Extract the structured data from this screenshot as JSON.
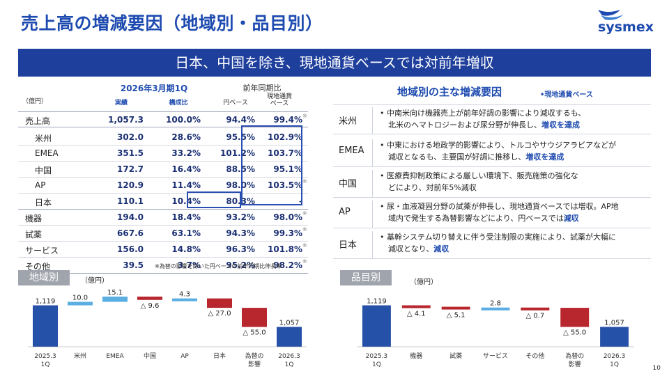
{
  "title": "売上高の増減要因（地域別・品目別）",
  "brand": "sysmex",
  "banner": "日本、中国を除き、現地通貨ベースでは対前年増収",
  "table": {
    "period": "2026年3月期1Q",
    "yoy_header": "前年同期比",
    "unit": "（億円）",
    "col_actual": "実績",
    "col_share": "構成比",
    "col_jpy": "円ベース",
    "col_local": "現地通貨ベース",
    "rows": [
      {
        "label": "売上高",
        "actual": "1,057.3",
        "share": "100.0%",
        "jpy": "94.4%",
        "local": "99.4%",
        "mark": "※"
      },
      {
        "label": "米州",
        "actual": "302.0",
        "share": "28.6%",
        "jpy": "95.5%",
        "local": "102.9%",
        "mark": ""
      },
      {
        "label": "EMEA",
        "actual": "351.5",
        "share": "33.2%",
        "jpy": "101.2%",
        "local": "103.7%",
        "mark": ""
      },
      {
        "label": "中国",
        "actual": "172.7",
        "share": "16.4%",
        "jpy": "88.5%",
        "local": "95.1%",
        "mark": ""
      },
      {
        "label": "AP",
        "actual": "120.9",
        "share": "11.4%",
        "jpy": "98.0%",
        "local": "103.5%",
        "mark": "※"
      },
      {
        "label": "日本",
        "actual": "110.1",
        "share": "10.4%",
        "jpy": "80.3%",
        "local": "-",
        "mark": ""
      },
      {
        "label": "機器",
        "actual": "194.0",
        "share": "18.4%",
        "jpy": "93.2%",
        "local": "98.0%",
        "mark": "※"
      },
      {
        "label": "試薬",
        "actual": "667.6",
        "share": "63.1%",
        "jpy": "94.3%",
        "local": "99.3%",
        "mark": "※"
      },
      {
        "label": "サービス",
        "actual": "156.0",
        "share": "14.8%",
        "jpy": "96.3%",
        "local": "101.8%",
        "mark": "※"
      },
      {
        "label": "その他",
        "actual": "39.5",
        "share": "3.7%",
        "jpy": "95.2%",
        "local": "98.2%",
        "mark": "※"
      }
    ],
    "note": "※為替の影響を除いた円ベースの前年同期比伸長率"
  },
  "regional": {
    "title": "地域別の主な増減要因",
    "subtitle": "•現地通貨ベース",
    "rows": [
      {
        "label": "米州",
        "line1": "中南米向け機器売上が前年好調の影響により減収するも、",
        "line2_pre": "北米のヘマトロジーおよび尿分野が伸長し、",
        "line2_em": "増収を達成",
        "line2_post": ""
      },
      {
        "label": "EMEA",
        "line1": "中東における地政学的影響により、トルコやサウジアラビアなどが",
        "line2_pre": "減収となるも、主要国が好調に推移し、",
        "line2_em": "増収を達成",
        "line2_post": ""
      },
      {
        "label": "中国",
        "line1": "医療費抑制政策による厳しい環境下、販売施策の強化な",
        "line2_pre": "どにより、対前年5%減収",
        "line2_em": "",
        "line2_post": ""
      },
      {
        "label": "AP",
        "line1": "尿・血液凝固分野の試薬が伸長し、現地通貨ベースでは増収。AP地",
        "line2_pre": "域内で発生する為替影響などにより、円ベースでは",
        "line2_em": "減収",
        "line2_post": ""
      },
      {
        "label": "日本",
        "line1": "基幹システム切り替えに伴う受注制限の実施により、試薬が大幅に",
        "line2_pre": "減収となり、",
        "line2_em": "減収",
        "line2_post": ""
      }
    ]
  },
  "chart_left_label": "地域別",
  "chart_right_label": "品目別",
  "unit_label": "（億円）",
  "page_number": "10",
  "chart_data": [
    {
      "type": "bar",
      "title": "地域別",
      "subtype": "waterfall",
      "categories": [
        "2025.3 1Q",
        "米州",
        "EMEA",
        "中国",
        "AP",
        "日本",
        "為替の影響",
        "2026.3 1Q"
      ],
      "values": [
        1119,
        10.0,
        15.1,
        -9.6,
        4.3,
        -27.0,
        -55.0,
        1057
      ],
      "labels": [
        "1,119",
        "10.0",
        "15.1",
        "△ 9.6",
        "4.3",
        "△ 27.0",
        "△ 55.0",
        "1,057"
      ],
      "ylabel": "（億円）"
    },
    {
      "type": "bar",
      "title": "品目別",
      "subtype": "waterfall",
      "categories": [
        "2025.3 1Q",
        "機器",
        "試薬",
        "サービス",
        "その他",
        "為替の影響",
        "2026.3 1Q"
      ],
      "values": [
        1119,
        -4.1,
        -5.1,
        2.8,
        -0.7,
        -55.0,
        1057
      ],
      "labels": [
        "1,119",
        "△ 4.1",
        "△ 5.1",
        "2.8",
        "△ 0.7",
        "△ 55.0",
        "1,057"
      ],
      "ylabel": "（億円）"
    }
  ],
  "colors": {
    "total": "#2651a8",
    "up": "#5aaee2",
    "down": "#b8272e",
    "accent": "#1e4bb0"
  }
}
